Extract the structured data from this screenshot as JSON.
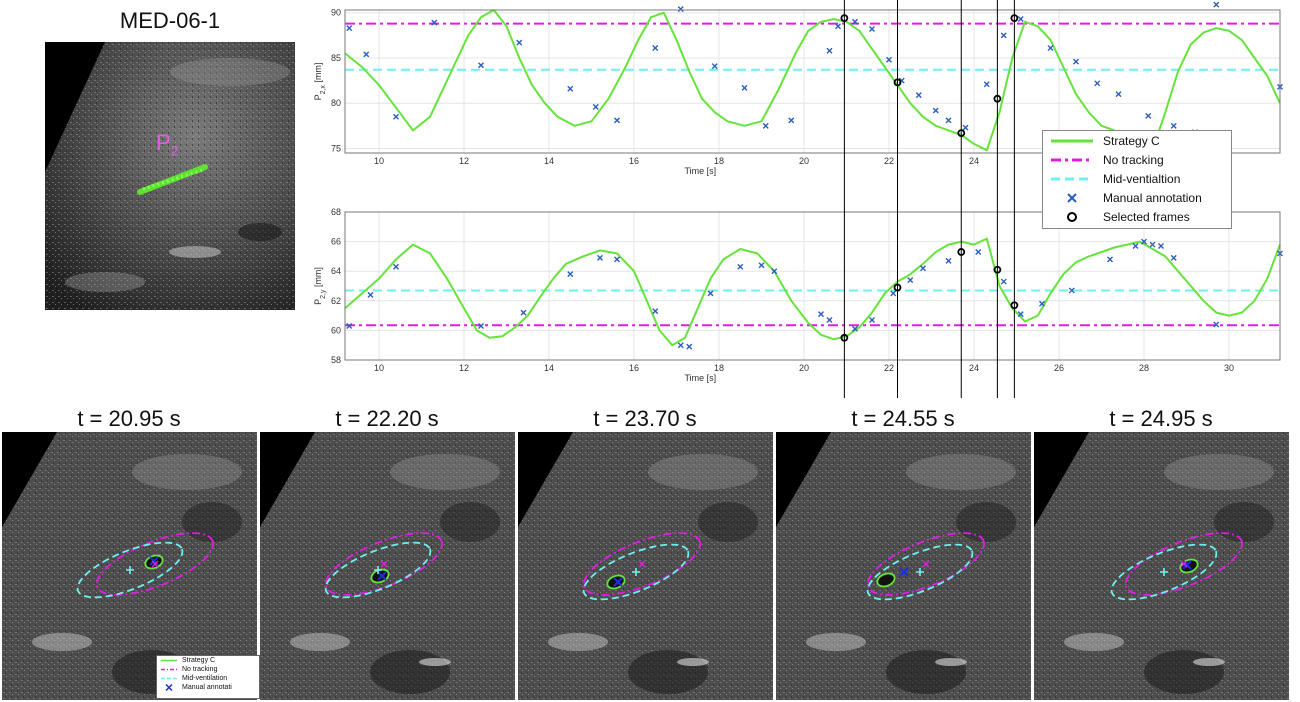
{
  "top_image": {
    "title": "MED-06-1",
    "point_label": "P",
    "point_sub": "2"
  },
  "frames": [
    {
      "title": "t = 20.95 s"
    },
    {
      "title": "t = 22.20 s"
    },
    {
      "title": "t = 23.70 s"
    },
    {
      "title": "t = 24.55 s"
    },
    {
      "title": "t = 24.95 s"
    }
  ],
  "legend": {
    "items": [
      {
        "label": "Strategy C",
        "color": "#66e33a",
        "style": "solid"
      },
      {
        "label": "No tracking",
        "color": "#e21ce8",
        "style": "dashdot"
      },
      {
        "label": "Mid-ventialtion",
        "color": "#6ff0f0",
        "style": "dashed"
      },
      {
        "label": "Manual annotation",
        "color": "#2a5dbd",
        "style": "cross"
      },
      {
        "label": "Selected frames",
        "color": "#000000",
        "style": "circle"
      }
    ]
  },
  "small_legend": {
    "items": [
      {
        "label": "Strategy C"
      },
      {
        "label": "No tracking"
      },
      {
        "label": "Mid-ventilation"
      },
      {
        "label": "Manual annotati"
      }
    ]
  },
  "chart_data": [
    {
      "type": "line",
      "xlabel": "Time [s]",
      "ylabel_main": "P",
      "ylabel_sub": "2,x",
      "ylabel_unit": " [mm]",
      "xlim": [
        9.2,
        31.2
      ],
      "ylim": [
        74.5,
        90.3
      ],
      "xticks": [
        10,
        12,
        14,
        16,
        18,
        20,
        22,
        24,
        26
      ],
      "yticks": [
        75,
        80,
        85,
        90
      ],
      "no_tracking": 88.8,
      "mid_ventilation": 83.7,
      "series": [
        {
          "name": "Strategy C",
          "x": [
            9.2,
            9.6,
            10.0,
            10.4,
            10.8,
            11.2,
            11.5,
            11.8,
            12.1,
            12.4,
            12.7,
            13.0,
            13.3,
            13.6,
            13.9,
            14.2,
            14.6,
            15.0,
            15.4,
            15.8,
            16.1,
            16.4,
            16.7,
            17.0,
            17.3,
            17.6,
            17.9,
            18.2,
            18.6,
            19.0,
            19.4,
            19.8,
            20.1,
            20.4,
            20.7,
            21.0,
            21.3,
            21.6,
            21.9,
            22.2,
            22.5,
            22.8,
            23.1,
            23.4,
            23.7,
            24.0,
            24.3,
            24.6,
            24.9,
            25.2,
            25.5,
            25.8,
            26.1,
            26.4,
            26.7,
            27.0,
            27.3,
            27.6,
            27.9,
            28.2,
            28.5,
            28.8,
            29.1,
            29.4,
            29.7,
            30.0,
            30.3,
            30.6,
            30.9,
            31.2
          ],
          "y": [
            85.5,
            84.0,
            82.0,
            79.5,
            77.0,
            78.5,
            81.5,
            84.5,
            87.5,
            89.5,
            90.3,
            88.5,
            85.0,
            82.0,
            80.0,
            78.5,
            77.5,
            78.0,
            80.5,
            84.0,
            87.0,
            89.5,
            90.0,
            87.0,
            83.5,
            80.5,
            79.0,
            78.0,
            77.5,
            78.0,
            81.5,
            85.5,
            88.0,
            89.0,
            89.3,
            89.0,
            88.0,
            86.0,
            84.0,
            82.0,
            80.0,
            78.5,
            77.5,
            77.0,
            76.5,
            75.5,
            74.8,
            79.0,
            85.0,
            89.0,
            88.5,
            87.0,
            84.0,
            81.0,
            79.0,
            77.5,
            77.0,
            76.0,
            75.0,
            74.8,
            79.0,
            83.5,
            86.5,
            87.8,
            88.3,
            88.0,
            87.0,
            85.0,
            83.0,
            80.0
          ]
        }
      ],
      "manual_annotation": {
        "x": [
          9.3,
          9.7,
          10.4,
          11.3,
          12.4,
          13.3,
          14.5,
          15.1,
          15.6,
          16.5,
          17.1,
          17.9,
          18.6,
          19.1,
          19.7,
          20.6,
          20.8,
          21.2,
          21.6,
          22.0,
          22.3,
          22.7,
          23.1,
          23.4,
          23.8,
          24.3,
          24.7,
          25.1,
          25.8,
          26.4,
          26.9,
          27.4,
          28.1,
          28.7,
          29.2,
          29.7,
          31.2
        ],
        "y": [
          88.3,
          85.4,
          78.5,
          88.9,
          84.2,
          86.7,
          81.6,
          79.6,
          78.1,
          86.1,
          90.4,
          84.1,
          81.7,
          77.5,
          78.1,
          85.8,
          88.5,
          89.0,
          88.2,
          84.8,
          82.5,
          80.9,
          79.2,
          78.1,
          77.3,
          82.1,
          87.5,
          89.3,
          86.1,
          84.6,
          82.2,
          81.0,
          78.6,
          77.5,
          76.8,
          90.9,
          81.8
        ]
      },
      "selected_frames": {
        "x": [
          20.95,
          22.2,
          23.7,
          24.55,
          24.95
        ],
        "y": [
          89.4,
          82.3,
          76.7,
          80.5,
          89.4
        ]
      }
    },
    {
      "type": "line",
      "xlabel": "Time [s]",
      "ylabel_main": "P",
      "ylabel_sub": "2,y",
      "ylabel_unit": " [mm]",
      "xlim": [
        9.2,
        31.2
      ],
      "ylim": [
        58,
        68
      ],
      "xticks": [
        10,
        12,
        14,
        16,
        18,
        20,
        22,
        24,
        26,
        28,
        30
      ],
      "yticks": [
        58,
        60,
        62,
        64,
        66,
        68
      ],
      "no_tracking": 60.35,
      "mid_ventilation": 62.7,
      "series": [
        {
          "name": "Strategy C",
          "x": [
            9.2,
            9.6,
            10.0,
            10.4,
            10.8,
            11.2,
            11.6,
            12.0,
            12.3,
            12.6,
            12.9,
            13.2,
            13.5,
            13.8,
            14.1,
            14.4,
            14.8,
            15.2,
            15.6,
            16.0,
            16.3,
            16.6,
            16.9,
            17.2,
            17.5,
            17.8,
            18.1,
            18.5,
            18.9,
            19.3,
            19.7,
            20.1,
            20.4,
            20.7,
            21.0,
            21.3,
            21.6,
            21.9,
            22.2,
            22.5,
            22.8,
            23.1,
            23.4,
            23.7,
            24.0,
            24.3,
            24.6,
            24.9,
            25.2,
            25.5,
            25.8,
            26.1,
            26.4,
            26.7,
            27.0,
            27.3,
            27.6,
            27.9,
            28.2,
            28.5,
            28.8,
            29.1,
            29.4,
            29.7,
            30.0,
            30.3,
            30.6,
            30.9,
            31.2
          ],
          "y": [
            61.5,
            62.5,
            63.5,
            64.8,
            65.8,
            65.2,
            63.5,
            61.5,
            60.0,
            59.5,
            59.6,
            60.2,
            61.0,
            62.3,
            63.5,
            64.5,
            65.0,
            65.4,
            65.2,
            64.0,
            62.0,
            60.0,
            59.0,
            59.5,
            61.5,
            63.5,
            64.8,
            65.5,
            65.2,
            64.0,
            62.0,
            60.5,
            59.7,
            59.4,
            59.6,
            60.2,
            61.2,
            62.5,
            63.3,
            63.8,
            64.5,
            65.3,
            65.8,
            66.0,
            65.8,
            66.2,
            63.0,
            61.5,
            60.6,
            61.0,
            62.5,
            63.8,
            64.6,
            65.0,
            65.3,
            65.6,
            65.8,
            66.0,
            65.5,
            65.0,
            64.0,
            63.0,
            62.0,
            61.2,
            61.0,
            61.2,
            62.0,
            63.5,
            65.8
          ]
        }
      ],
      "manual_annotation": {
        "x": [
          9.3,
          9.8,
          10.4,
          12.4,
          13.4,
          14.5,
          15.2,
          15.6,
          16.5,
          17.1,
          17.3,
          17.8,
          18.5,
          19.0,
          19.3,
          20.4,
          20.6,
          21.2,
          21.6,
          22.1,
          22.5,
          22.8,
          23.4,
          24.1,
          24.7,
          25.1,
          25.6,
          26.3,
          27.2,
          27.8,
          28.0,
          28.2,
          28.4,
          28.7,
          29.7,
          31.2
        ],
        "y": [
          60.3,
          62.4,
          64.3,
          60.3,
          61.2,
          63.8,
          64.9,
          64.8,
          61.3,
          59.0,
          58.9,
          62.5,
          64.3,
          64.4,
          64.0,
          61.1,
          60.7,
          60.1,
          60.7,
          62.5,
          63.4,
          64.2,
          64.7,
          65.3,
          63.3,
          61.1,
          61.8,
          62.7,
          64.8,
          65.7,
          66.0,
          65.8,
          65.7,
          64.9,
          60.4,
          65.2
        ]
      },
      "selected_frames": {
        "x": [
          20.95,
          22.2,
          23.7,
          24.55,
          24.95
        ],
        "y": [
          59.5,
          62.9,
          65.3,
          64.1,
          61.7
        ]
      }
    }
  ]
}
